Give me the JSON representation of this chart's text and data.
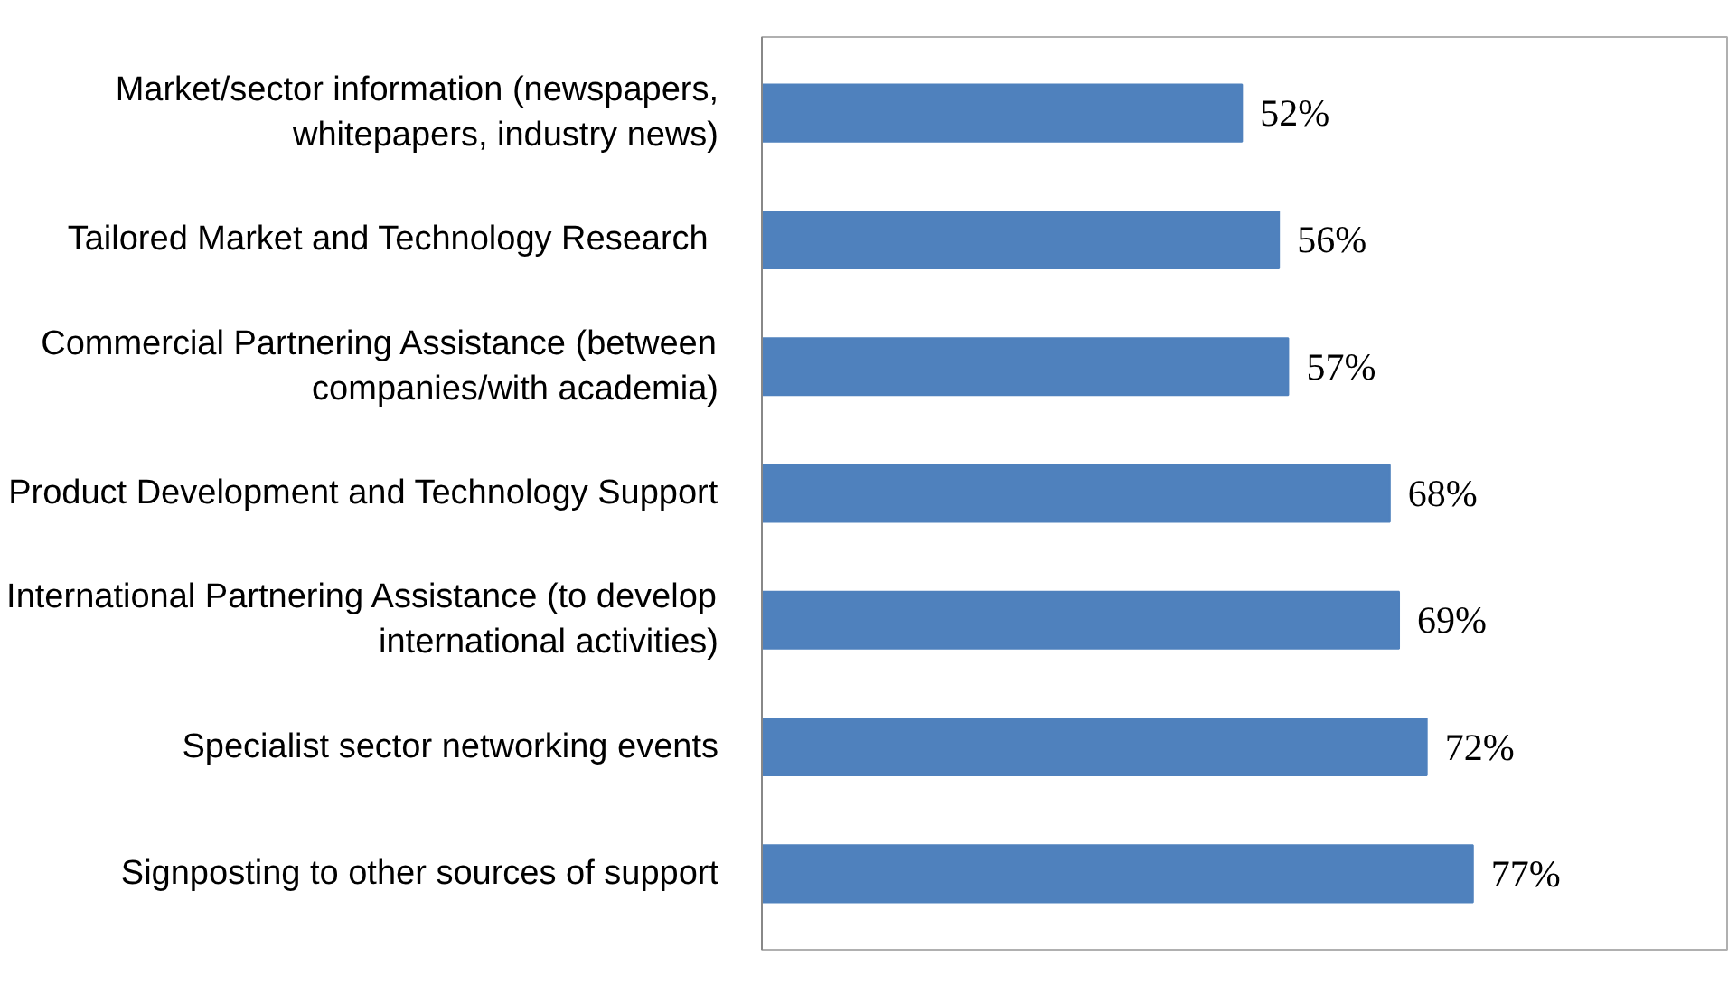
{
  "chart_data": {
    "type": "bar",
    "orientation": "horizontal",
    "categories": [
      "Market/sector information (newspapers,\nwhitepapers, industry news)",
      "Tailored  Market and Technology Research",
      "Commercial Partnering Assistance (between\ncompanies/with academia)",
      "Product Development and Technology Support",
      "International Partnering Assistance (to develop\ninternational activities)",
      "Specialist sector networking events",
      "Signposting to other sources of support"
    ],
    "values": [
      52,
      56,
      57,
      68,
      69,
      72,
      77
    ],
    "value_labels": [
      "52%",
      "56%",
      "57%",
      "68%",
      "69%",
      "72%",
      "77%"
    ],
    "color": "#4f81bd"
  }
}
